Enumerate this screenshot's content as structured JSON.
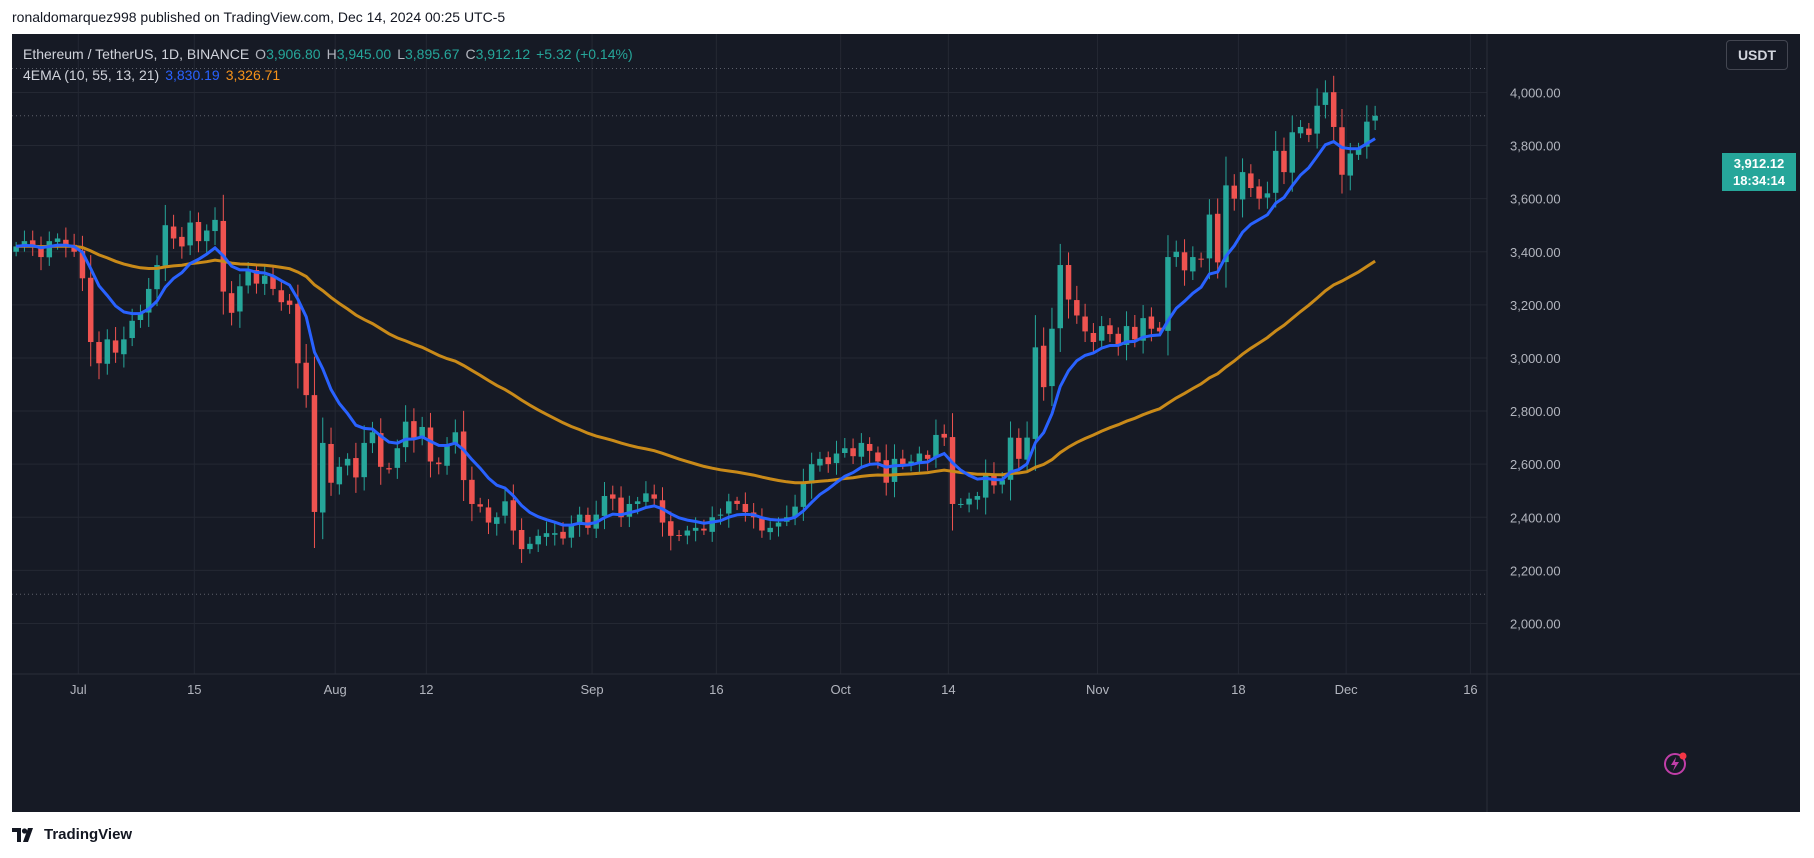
{
  "header": {
    "published_text": "ronaldomarquez998 published on TradingView.com, Dec 14, 2024 00:25 UTC-5"
  },
  "legend": {
    "symbol": "Ethereum / TetherUS, 1D, BINANCE",
    "o_label": "O",
    "o_value": "3,906.80",
    "h_label": "H",
    "h_value": "3,945.00",
    "l_label": "L",
    "l_value": "3,895.67",
    "c_label": "C",
    "c_value": "3,912.12",
    "change": "+5.32 (+0.14%)",
    "indicator": "4EMA (10, 55, 13, 21)",
    "ema_fast_value": "3,830.19",
    "ema_slow_value": "3,326.71"
  },
  "currency_button": "USDT",
  "price_tag": {
    "price": "3,912.12",
    "countdown": "18:34:14"
  },
  "footer": {
    "brand": "TradingView"
  },
  "icons": {
    "alert": "lightning-icon",
    "logo": "tradingview-logo-icon"
  },
  "colors": {
    "background": "#161a25",
    "up": "#26a69a",
    "down": "#ef5350",
    "ema_fast": "#2962ff",
    "ema_slow": "#c98a19",
    "grid": "#242833",
    "axis_text": "#b2b5be"
  },
  "chart_data": {
    "type": "candlestick",
    "title": "Ethereum / TetherUS, 1D, BINANCE",
    "x_range": [
      "2024-06-23",
      "2024-12-18"
    ],
    "ylim": [
      1900,
      4250
    ],
    "y_ticks": [
      2000,
      2200,
      2400,
      2600,
      2800,
      3000,
      3200,
      3400,
      3600,
      3800,
      4000
    ],
    "y_tick_labels": [
      "2,000.00",
      "2,200.00",
      "2,400.00",
      "2,600.00",
      "2,800.00",
      "3,000.00",
      "3,200.00",
      "3,400.00",
      "3,600.00",
      "3,800.00",
      "4,000.00"
    ],
    "x_ticks": [
      {
        "date": "2024-07-01",
        "label": "Jul"
      },
      {
        "date": "2024-07-15",
        "label": "15"
      },
      {
        "date": "2024-08-01",
        "label": "Aug"
      },
      {
        "date": "2024-08-12",
        "label": "12"
      },
      {
        "date": "2024-09-01",
        "label": "Sep"
      },
      {
        "date": "2024-09-16",
        "label": "16"
      },
      {
        "date": "2024-10-01",
        "label": "Oct"
      },
      {
        "date": "2024-10-14",
        "label": "14"
      },
      {
        "date": "2024-11-01",
        "label": "Nov"
      },
      {
        "date": "2024-11-18",
        "label": "18"
      },
      {
        "date": "2024-12-01",
        "label": "Dec"
      },
      {
        "date": "2024-12-16",
        "label": "16"
      }
    ],
    "reference_lines": [
      4090,
      3912.12,
      2110
    ],
    "grid": true,
    "candle_start_date": "2024-06-23",
    "closes": [
      3420,
      3440,
      3420,
      3380,
      3440,
      3450,
      3420,
      3400,
      3300,
      3060,
      2980,
      3070,
      3020,
      3070,
      3140,
      3170,
      3260,
      3350,
      3500,
      3450,
      3420,
      3510,
      3440,
      3480,
      3520,
      3250,
      3170,
      3270,
      3330,
      3280,
      3310,
      3260,
      3210,
      3200,
      2980,
      2860,
      2420,
      2680,
      2530,
      2590,
      2620,
      2550,
      2680,
      2720,
      2590,
      2580,
      2660,
      2760,
      2700,
      2740,
      2610,
      2600,
      2670,
      2720,
      2540,
      2450,
      2440,
      2380,
      2400,
      2460,
      2350,
      2280,
      2300,
      2330,
      2340,
      2340,
      2320,
      2370,
      2410,
      2360,
      2410,
      2480,
      2470,
      2400,
      2450,
      2460,
      2490,
      2470,
      2380,
      2330,
      2330,
      2350,
      2360,
      2350,
      2400,
      2410,
      2460,
      2450,
      2420,
      2400,
      2350,
      2360,
      2380,
      2400,
      2440,
      2530,
      2600,
      2620,
      2600,
      2640,
      2660,
      2630,
      2680,
      2650,
      2610,
      2530,
      2620,
      2600,
      2610,
      2640,
      2620,
      2710,
      2700,
      2450,
      2450,
      2470,
      2480,
      2560,
      2520,
      2540,
      2700,
      2620,
      2700,
      3040,
      2890,
      3110,
      3350,
      3220,
      3160,
      3100,
      3060,
      3120,
      3090,
      3050,
      3120,
      3070,
      3150,
      3110,
      3100,
      3380,
      3400,
      3330,
      3380,
      3370,
      3540,
      3360,
      3650,
      3600,
      3700,
      3640,
      3600,
      3620,
      3780,
      3700,
      3850,
      3870,
      3840,
      3950,
      4000,
      3870,
      3690,
      3770,
      3790,
      3890,
      3912
    ]
  }
}
